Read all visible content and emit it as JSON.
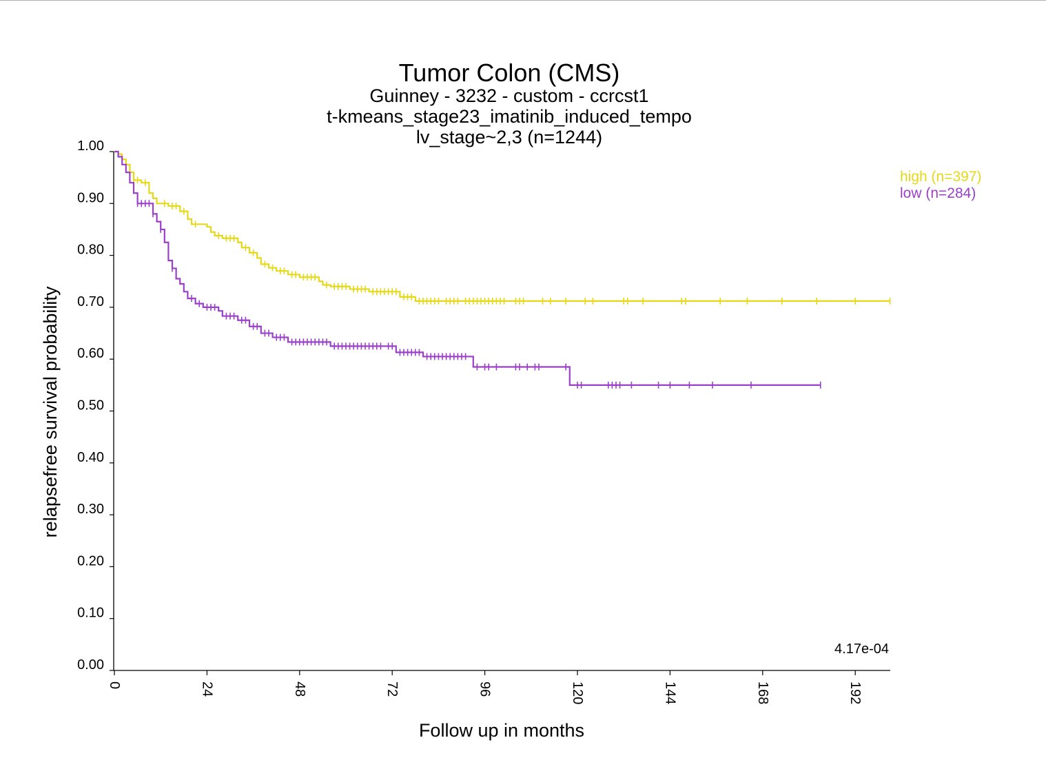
{
  "chart_data": {
    "type": "line",
    "subtype": "kaplan-meier",
    "title": "Tumor Colon (CMS)",
    "subtitle_lines": [
      "Guinney - 3232 - custom - ccrcst1",
      "t-kmeans_stage23_imatinib_induced_tempo",
      "lv_stage~2,3 (n=1244)"
    ],
    "xlabel": "Follow up in months",
    "ylabel": "relapsefree survival probability",
    "xlim": [
      0,
      201
    ],
    "ylim": [
      0,
      1
    ],
    "x_ticks": [
      "0",
      "24",
      "48",
      "72",
      "96",
      "120",
      "144",
      "168",
      "192"
    ],
    "y_ticks": [
      "0.00",
      "0.10",
      "0.20",
      "0.30",
      "0.40",
      "0.50",
      "0.60",
      "0.70",
      "0.80",
      "0.90",
      "1.00"
    ],
    "p_value": "4.17e-04",
    "legend_position": "top-right",
    "grid": false,
    "series": [
      {
        "name": "high (n=397)",
        "color": "#e6d817",
        "steps": [
          [
            0,
            1.0
          ],
          [
            1,
            0.995
          ],
          [
            2,
            0.985
          ],
          [
            3,
            0.975
          ],
          [
            4,
            0.96
          ],
          [
            5,
            0.945
          ],
          [
            7,
            0.94
          ],
          [
            9,
            0.92
          ],
          [
            10,
            0.91
          ],
          [
            11,
            0.9
          ],
          [
            14,
            0.895
          ],
          [
            17,
            0.885
          ],
          [
            19,
            0.87
          ],
          [
            20,
            0.86
          ],
          [
            24,
            0.855
          ],
          [
            25,
            0.845
          ],
          [
            26,
            0.838
          ],
          [
            28,
            0.833
          ],
          [
            32,
            0.825
          ],
          [
            33,
            0.815
          ],
          [
            35,
            0.805
          ],
          [
            37,
            0.795
          ],
          [
            38,
            0.783
          ],
          [
            40,
            0.776
          ],
          [
            42,
            0.77
          ],
          [
            45,
            0.763
          ],
          [
            48,
            0.758
          ],
          [
            53,
            0.75
          ],
          [
            54,
            0.743
          ],
          [
            56,
            0.74
          ],
          [
            61,
            0.735
          ],
          [
            66,
            0.73
          ],
          [
            74,
            0.72
          ],
          [
            78,
            0.712
          ],
          [
            201,
            0.712
          ]
        ],
        "censors": [
          4,
          5,
          6,
          8,
          13,
          15,
          16,
          18,
          21,
          27,
          29,
          30,
          31,
          34,
          36,
          39,
          41,
          43,
          44,
          46,
          47,
          49,
          50,
          51,
          52,
          55,
          57,
          58,
          59,
          60,
          62,
          63,
          64,
          65,
          67,
          68,
          69,
          70,
          71,
          72,
          73,
          75,
          76,
          77,
          79,
          80,
          81,
          82,
          83,
          84,
          86,
          87,
          88,
          89,
          91,
          92,
          93,
          94,
          95,
          96,
          97,
          98,
          99,
          100,
          101,
          104,
          105,
          106,
          111,
          113,
          117,
          122,
          124,
          132,
          133,
          137,
          147,
          148,
          157,
          164,
          173,
          182,
          192,
          201
        ]
      },
      {
        "name": "low (n=284)",
        "color": "#9b3fc9",
        "steps": [
          [
            0,
            1.0
          ],
          [
            1,
            0.99
          ],
          [
            2,
            0.975
          ],
          [
            3,
            0.96
          ],
          [
            4,
            0.94
          ],
          [
            5,
            0.92
          ],
          [
            6,
            0.9
          ],
          [
            10,
            0.88
          ],
          [
            11,
            0.865
          ],
          [
            12,
            0.85
          ],
          [
            13,
            0.825
          ],
          [
            14,
            0.79
          ],
          [
            15,
            0.775
          ],
          [
            16,
            0.755
          ],
          [
            17,
            0.745
          ],
          [
            18,
            0.73
          ],
          [
            19,
            0.717
          ],
          [
            21,
            0.707
          ],
          [
            23,
            0.7
          ],
          [
            27,
            0.693
          ],
          [
            28,
            0.683
          ],
          [
            32,
            0.675
          ],
          [
            35,
            0.663
          ],
          [
            38,
            0.65
          ],
          [
            41,
            0.642
          ],
          [
            45,
            0.633
          ],
          [
            56,
            0.625
          ],
          [
            73,
            0.613
          ],
          [
            80,
            0.605
          ],
          [
            93,
            0.585
          ],
          [
            118,
            0.55
          ],
          [
            183,
            0.55
          ]
        ],
        "censors": [
          6,
          7,
          8,
          9,
          10,
          12,
          15,
          20,
          22,
          24,
          25,
          26,
          29,
          30,
          31,
          33,
          34,
          36,
          37,
          39,
          40,
          42,
          43,
          44,
          46,
          47,
          48,
          49,
          50,
          51,
          52,
          53,
          54,
          55,
          57,
          58,
          59,
          60,
          61,
          62,
          63,
          64,
          65,
          66,
          67,
          68,
          69,
          71,
          72,
          74,
          75,
          76,
          77,
          78,
          79,
          81,
          82,
          83,
          84,
          85,
          86,
          87,
          88,
          89,
          90,
          91,
          94,
          96,
          97,
          99,
          104,
          105,
          107,
          109,
          110,
          117,
          120,
          121,
          128,
          129,
          130,
          131,
          134,
          141,
          144,
          149,
          155,
          165,
          183
        ]
      }
    ]
  }
}
